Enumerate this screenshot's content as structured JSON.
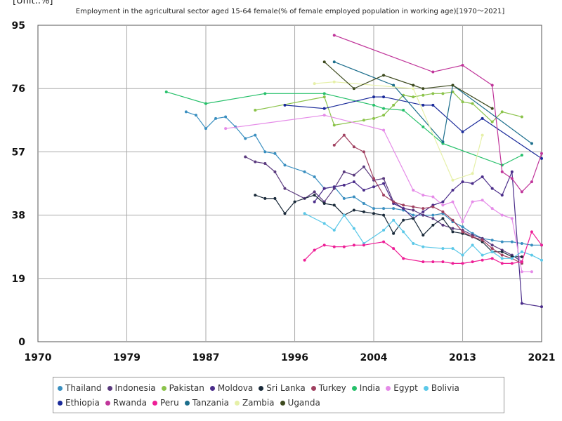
{
  "chart_data": {
    "type": "line",
    "unit_label": "[Unit:.%]",
    "title": "Employment in the agricultural sector aged 15-64 female(% of female employed population in working age)[1970〜2021]",
    "xlim": [
      1970,
      2021
    ],
    "ylim": [
      0,
      95
    ],
    "x_ticks": [
      1970,
      1979,
      1987,
      1996,
      2004,
      2013,
      2021
    ],
    "y_ticks": [
      0,
      19,
      38,
      57,
      76,
      95
    ],
    "grid": true,
    "legend_position": "bottom",
    "series": [
      {
        "name": "Thailand",
        "color": "#3a8fc0",
        "points": [
          [
            1985,
            69
          ],
          [
            1986,
            68
          ],
          [
            1987,
            64
          ],
          [
            1988,
            67
          ],
          [
            1989,
            67.5
          ],
          [
            1990,
            64.5
          ],
          [
            1991,
            61
          ],
          [
            1992,
            62
          ],
          [
            1993,
            57
          ],
          [
            1994,
            56.5
          ],
          [
            1995,
            53
          ],
          [
            1997,
            51
          ],
          [
            1998,
            49.5
          ],
          [
            1999,
            46
          ],
          [
            2000,
            46.5
          ],
          [
            2001,
            43
          ],
          [
            2002,
            43.5
          ],
          [
            2003,
            41.5
          ],
          [
            2004,
            40
          ],
          [
            2005,
            40
          ],
          [
            2006,
            40
          ],
          [
            2007,
            39.5
          ],
          [
            2008,
            38
          ],
          [
            2009,
            38
          ],
          [
            2010,
            38
          ],
          [
            2011,
            38.5
          ],
          [
            2012,
            36
          ],
          [
            2013,
            34.5
          ],
          [
            2014,
            32.5
          ],
          [
            2015,
            31
          ],
          [
            2016,
            30.5
          ],
          [
            2017,
            30
          ],
          [
            2018,
            30
          ],
          [
            2019,
            29.5
          ],
          [
            2020,
            29
          ],
          [
            2021,
            29
          ]
        ]
      },
      {
        "name": "Indonesia",
        "color": "#5a3a7e",
        "points": [
          [
            1991,
            55.5
          ],
          [
            1992,
            54
          ],
          [
            1993,
            53.5
          ],
          [
            1994,
            51
          ],
          [
            1995,
            46
          ],
          [
            1997,
            43
          ],
          [
            1998,
            45
          ],
          [
            1999,
            42
          ],
          [
            2000,
            46
          ],
          [
            2001,
            51
          ],
          [
            2002,
            50
          ],
          [
            2003,
            52.5
          ],
          [
            2004,
            48.5
          ],
          [
            2005,
            49
          ],
          [
            2006,
            42
          ],
          [
            2007,
            40
          ],
          [
            2008,
            39.5
          ],
          [
            2009,
            38
          ],
          [
            2010,
            37
          ],
          [
            2011,
            35
          ],
          [
            2012,
            34
          ],
          [
            2013,
            33.5
          ],
          [
            2014,
            32
          ],
          [
            2015,
            31
          ],
          [
            2016,
            29
          ],
          [
            2017,
            27.5
          ],
          [
            2018,
            26
          ],
          [
            2019,
            24
          ]
        ]
      },
      {
        "name": "Pakistan",
        "color": "#8bc34a",
        "points": [
          [
            1992,
            69.5
          ],
          [
            1999,
            73.5
          ],
          [
            2000,
            65
          ],
          [
            2003,
            66.5
          ],
          [
            2004,
            67
          ],
          [
            2005,
            68
          ],
          [
            2006,
            71
          ],
          [
            2007,
            74
          ],
          [
            2008,
            73.5
          ],
          [
            2009,
            74
          ],
          [
            2010,
            74.5
          ],
          [
            2011,
            74.5
          ],
          [
            2012,
            75
          ],
          [
            2013,
            72
          ],
          [
            2014,
            71.5
          ],
          [
            2016,
            66
          ],
          [
            2017,
            69
          ],
          [
            2019,
            67.5
          ]
        ]
      },
      {
        "name": "Moldova",
        "color": "#4b2d8a",
        "points": [
          [
            1998,
            42
          ],
          [
            1999,
            46
          ],
          [
            2000,
            46.5
          ],
          [
            2001,
            47
          ],
          [
            2002,
            48
          ],
          [
            2003,
            45.5
          ],
          [
            2004,
            46.5
          ],
          [
            2005,
            47.5
          ],
          [
            2006,
            41.5
          ],
          [
            2007,
            40
          ],
          [
            2008,
            37
          ],
          [
            2009,
            39
          ],
          [
            2010,
            41
          ],
          [
            2011,
            42
          ],
          [
            2012,
            45.5
          ],
          [
            2013,
            48
          ],
          [
            2014,
            47.5
          ],
          [
            2015,
            49.5
          ],
          [
            2016,
            46
          ],
          [
            2017,
            44
          ],
          [
            2018,
            51
          ],
          [
            2019,
            11.5
          ],
          [
            2021,
            10.5
          ]
        ]
      },
      {
        "name": "Sri Lanka",
        "color": "#1a2a3a",
        "points": [
          [
            1992,
            44
          ],
          [
            1993,
            43
          ],
          [
            1994,
            43
          ],
          [
            1995,
            38.5
          ],
          [
            1996,
            42
          ],
          [
            1998,
            44
          ],
          [
            1999,
            41.5
          ],
          [
            2000,
            41
          ],
          [
            2001,
            38
          ],
          [
            2002,
            39.5
          ],
          [
            2003,
            39
          ],
          [
            2004,
            38.5
          ],
          [
            2005,
            38
          ],
          [
            2006,
            32.5
          ],
          [
            2007,
            36.5
          ],
          [
            2008,
            37
          ],
          [
            2009,
            32
          ],
          [
            2010,
            35
          ],
          [
            2011,
            37
          ],
          [
            2012,
            33
          ],
          [
            2013,
            32.5
          ],
          [
            2014,
            31.5
          ],
          [
            2015,
            30
          ],
          [
            2016,
            27
          ],
          [
            2017,
            27
          ],
          [
            2018,
            25.5
          ],
          [
            2019,
            25.5
          ]
        ]
      },
      {
        "name": "Turkey",
        "color": "#a04060",
        "points": [
          [
            2000,
            59
          ],
          [
            2001,
            62
          ],
          [
            2002,
            58.5
          ],
          [
            2003,
            57
          ],
          [
            2004,
            49
          ],
          [
            2005,
            44
          ],
          [
            2006,
            42
          ],
          [
            2007,
            41
          ],
          [
            2008,
            40.5
          ],
          [
            2009,
            40
          ],
          [
            2010,
            40.5
          ],
          [
            2011,
            39
          ],
          [
            2012,
            36.5
          ],
          [
            2013,
            33
          ],
          [
            2014,
            31.5
          ],
          [
            2015,
            30.5
          ],
          [
            2016,
            28
          ],
          [
            2017,
            26
          ],
          [
            2018,
            25
          ],
          [
            2019,
            23.5
          ]
        ]
      },
      {
        "name": "India",
        "color": "#26c06a",
        "points": [
          [
            1983,
            75
          ],
          [
            1987,
            71.5
          ],
          [
            1993,
            74.5
          ],
          [
            1999,
            74.5
          ],
          [
            2004,
            71
          ],
          [
            2005,
            70
          ],
          [
            2007,
            69.5
          ],
          [
            2009,
            64.5
          ],
          [
            2011,
            59.5
          ],
          [
            2017,
            53
          ],
          [
            2019,
            56
          ]
        ]
      },
      {
        "name": "Egypt",
        "color": "#e58be8",
        "points": [
          [
            1989,
            64
          ],
          [
            1999,
            68
          ],
          [
            2005,
            63.5
          ],
          [
            2008,
            45.5
          ],
          [
            2009,
            44
          ],
          [
            2010,
            43.5
          ],
          [
            2011,
            41
          ],
          [
            2012,
            42
          ],
          [
            2013,
            36
          ],
          [
            2014,
            42
          ],
          [
            2015,
            42.5
          ],
          [
            2016,
            40
          ],
          [
            2017,
            38
          ],
          [
            2018,
            37
          ],
          [
            2019,
            21
          ],
          [
            2020,
            21
          ]
        ]
      },
      {
        "name": "Bolivia",
        "color": "#5bc8e8",
        "points": [
          [
            1997,
            38.5
          ],
          [
            1999,
            35.5
          ],
          [
            2000,
            33.5
          ],
          [
            2001,
            38
          ],
          [
            2002,
            34
          ],
          [
            2003,
            29.5
          ],
          [
            2005,
            33.5
          ],
          [
            2006,
            36.5
          ],
          [
            2007,
            33
          ],
          [
            2008,
            29.5
          ],
          [
            2009,
            28.5
          ],
          [
            2011,
            28
          ],
          [
            2012,
            28
          ],
          [
            2013,
            26
          ],
          [
            2014,
            29
          ],
          [
            2015,
            26
          ],
          [
            2016,
            27
          ],
          [
            2017,
            25
          ],
          [
            2018,
            25
          ],
          [
            2019,
            27
          ],
          [
            2020,
            26
          ],
          [
            2021,
            24.5
          ]
        ]
      },
      {
        "name": "Ethiopia",
        "color": "#1a2a9a",
        "points": [
          [
            1995,
            71
          ],
          [
            1999,
            70
          ],
          [
            2004,
            73.5
          ],
          [
            2005,
            73.5
          ],
          [
            2009,
            71
          ],
          [
            2010,
            71
          ],
          [
            2013,
            63
          ],
          [
            2015,
            67
          ],
          [
            2021,
            55
          ]
        ]
      },
      {
        "name": "Rwanda",
        "color": "#c0359a",
        "points": [
          [
            2000,
            92
          ],
          [
            2010,
            81
          ],
          [
            2013,
            83
          ],
          [
            2016,
            77
          ],
          [
            2017,
            51
          ],
          [
            2018,
            49
          ],
          [
            2019,
            45
          ],
          [
            2020,
            48
          ],
          [
            2021,
            56.5
          ]
        ]
      },
      {
        "name": "Peru",
        "color": "#ee1e96",
        "points": [
          [
            1997,
            24.5
          ],
          [
            1998,
            27.5
          ],
          [
            1999,
            29
          ],
          [
            2000,
            28.5
          ],
          [
            2001,
            28.5
          ],
          [
            2002,
            29
          ],
          [
            2003,
            29
          ],
          [
            2005,
            30
          ],
          [
            2006,
            28
          ],
          [
            2007,
            25
          ],
          [
            2009,
            24
          ],
          [
            2010,
            24
          ],
          [
            2011,
            24
          ],
          [
            2012,
            23.5
          ],
          [
            2013,
            23.5
          ],
          [
            2014,
            24
          ],
          [
            2015,
            24.5
          ],
          [
            2016,
            25
          ],
          [
            2017,
            23.5
          ],
          [
            2018,
            23.5
          ],
          [
            2019,
            24
          ],
          [
            2020,
            33
          ],
          [
            2021,
            29
          ]
        ]
      },
      {
        "name": "Tanzania",
        "color": "#1c6e8c",
        "points": [
          [
            2000,
            84
          ],
          [
            2006,
            77
          ],
          [
            2011,
            60
          ],
          [
            2012,
            77
          ],
          [
            2020,
            59.5
          ]
        ]
      },
      {
        "name": "Zambia",
        "color": "#e6f0a8",
        "points": [
          [
            1998,
            77.5
          ],
          [
            2000,
            78
          ],
          [
            2008,
            76
          ],
          [
            2012,
            48.5
          ],
          [
            2014,
            50.5
          ],
          [
            2015,
            62
          ]
        ]
      },
      {
        "name": "Uganda",
        "color": "#3d4a1e",
        "points": [
          [
            1999,
            84
          ],
          [
            2002,
            76
          ],
          [
            2005,
            80
          ],
          [
            2008,
            77
          ],
          [
            2009,
            76
          ],
          [
            2012,
            77
          ],
          [
            2016,
            70
          ]
        ]
      }
    ]
  }
}
